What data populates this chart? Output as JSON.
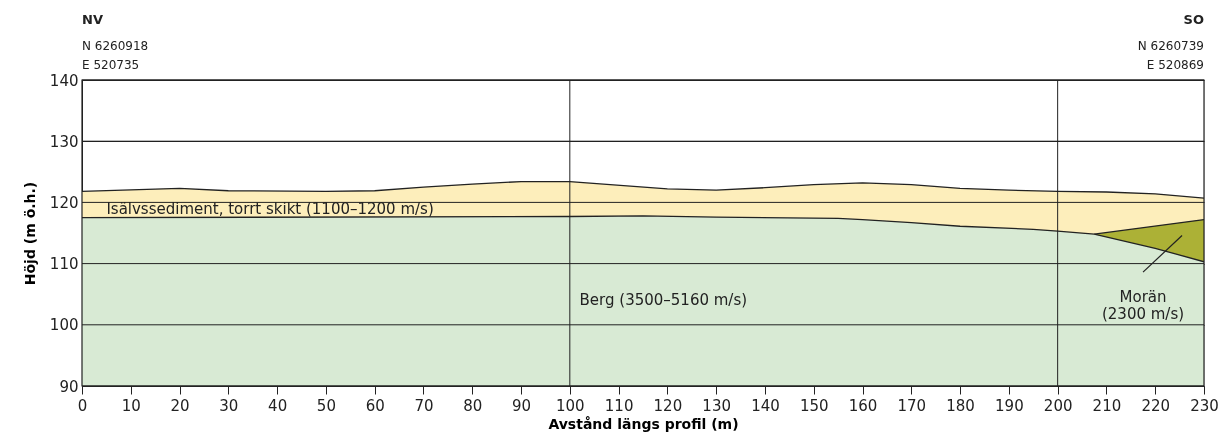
{
  "chart_data": {
    "type": "area",
    "xlabel": "Avstånd längs profil (m)",
    "ylabel": "Höjd (m ö.h.)",
    "xlim": [
      0,
      230
    ],
    "xticks": [
      0,
      10,
      20,
      30,
      40,
      50,
      60,
      70,
      80,
      90,
      100,
      110,
      120,
      130,
      140,
      150,
      160,
      170,
      180,
      190,
      200,
      210,
      220,
      230
    ],
    "ylim": [
      90,
      140
    ],
    "yticks": [
      90,
      100,
      110,
      120,
      130,
      140
    ],
    "grid": "y",
    "series": [
      {
        "color": "#fdeebb",
        "x": [
          0,
          20,
          30,
          50,
          60,
          70,
          80,
          90,
          100,
          120,
          130,
          140,
          150,
          160,
          170,
          180,
          190,
          200,
          210,
          220,
          230
        ],
        "values": [
          121.8,
          122.3,
          121.9,
          121.8,
          121.9,
          122.5,
          123.0,
          123.4,
          123.4,
          122.2,
          122.0,
          122.4,
          122.9,
          123.2,
          122.9,
          122.3,
          122.0,
          121.8,
          121.7,
          121.4,
          120.7
        ]
      },
      {
        "color": "#acb136",
        "x": [
          207.5,
          230
        ],
        "values": [
          114.8,
          117.2
        ]
      },
      {
        "color": "#d8ead4",
        "x": [
          0,
          100,
          115,
          130,
          155,
          160,
          170,
          180,
          195,
          200,
          207.5,
          220,
          230
        ],
        "values": [
          117.5,
          117.7,
          117.8,
          117.6,
          117.4,
          117.2,
          116.7,
          116.1,
          115.6,
          115.3,
          114.8,
          112.5,
          110.3
        ]
      }
    ],
    "ref_lines": [
      {
        "axis": "x",
        "value": 100
      },
      {
        "axis": "x",
        "value": 200
      }
    ],
    "annotations": [
      "NV",
      "N 6260918",
      "E 520735",
      "SO",
      "N 6260739",
      "E 520869",
      "Isälvssediment, torrt skikt (1100–1200 m/s)",
      "Berg (3500–5160 m/s)",
      "Morän\n(2300 m/s)"
    ]
  }
}
